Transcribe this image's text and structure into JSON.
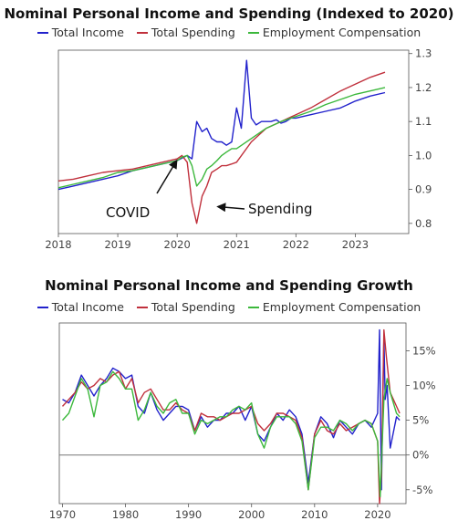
{
  "chart_data": [
    {
      "type": "line",
      "title": "Nominal Personal Income and Spending (Indexed to 2020)",
      "xlim": [
        2018.0,
        2023.9
      ],
      "ylim": [
        0.77,
        1.31
      ],
      "y_ticks": [
        "0.8",
        "0.9",
        "1.0",
        "1.1",
        "1.2",
        "1.3"
      ],
      "y_tick_values": [
        0.8,
        0.9,
        1.0,
        1.1,
        1.2,
        1.3
      ],
      "x_ticks": [
        "2018",
        "2019",
        "2020",
        "2021",
        "2022",
        "2023"
      ],
      "x_tick_values": [
        2018,
        2019,
        2020,
        2021,
        2022,
        2023
      ],
      "y_axis_side": "right",
      "grid": false,
      "legend": "top",
      "series": [
        {
          "name": "Total Income",
          "color": "#2222cc",
          "x": [
            2018.0,
            2018.25,
            2018.5,
            2018.75,
            2019.0,
            2019.25,
            2019.5,
            2019.75,
            2020.0,
            2020.17,
            2020.25,
            2020.33,
            2020.42,
            2020.5,
            2020.58,
            2020.67,
            2020.75,
            2020.83,
            2020.92,
            2021.0,
            2021.08,
            2021.17,
            2021.25,
            2021.33,
            2021.42,
            2021.5,
            2021.58,
            2021.67,
            2021.75,
            2021.83,
            2021.92,
            2022.0,
            2022.25,
            2022.5,
            2022.75,
            2023.0,
            2023.25,
            2023.5
          ],
          "y": [
            0.9,
            0.91,
            0.92,
            0.93,
            0.94,
            0.955,
            0.965,
            0.975,
            0.985,
            1.0,
            0.99,
            1.1,
            1.07,
            1.08,
            1.05,
            1.04,
            1.04,
            1.03,
            1.04,
            1.14,
            1.08,
            1.28,
            1.11,
            1.09,
            1.1,
            1.1,
            1.1,
            1.105,
            1.095,
            1.1,
            1.11,
            1.11,
            1.12,
            1.13,
            1.14,
            1.16,
            1.175,
            1.185
          ]
        },
        {
          "name": "Total Spending",
          "color": "#c0303c",
          "x": [
            2018.0,
            2018.25,
            2018.5,
            2018.75,
            2019.0,
            2019.25,
            2019.5,
            2019.75,
            2020.0,
            2020.08,
            2020.17,
            2020.25,
            2020.33,
            2020.42,
            2020.5,
            2020.58,
            2020.67,
            2020.75,
            2020.83,
            2020.92,
            2021.0,
            2021.25,
            2021.5,
            2021.75,
            2022.0,
            2022.25,
            2022.5,
            2022.75,
            2023.0,
            2023.25,
            2023.5
          ],
          "y": [
            0.925,
            0.93,
            0.94,
            0.95,
            0.955,
            0.96,
            0.97,
            0.98,
            0.99,
            1.0,
            0.98,
            0.86,
            0.8,
            0.88,
            0.91,
            0.95,
            0.96,
            0.97,
            0.97,
            0.975,
            0.98,
            1.04,
            1.08,
            1.1,
            1.12,
            1.14,
            1.165,
            1.19,
            1.21,
            1.23,
            1.245
          ]
        },
        {
          "name": "Employment Compensation",
          "color": "#3cb83c",
          "x": [
            2018.0,
            2018.25,
            2018.5,
            2018.75,
            2019.0,
            2019.25,
            2019.5,
            2019.75,
            2020.0,
            2020.08,
            2020.17,
            2020.25,
            2020.33,
            2020.42,
            2020.5,
            2020.58,
            2020.67,
            2020.75,
            2020.83,
            2020.92,
            2021.0,
            2021.25,
            2021.5,
            2021.75,
            2022.0,
            2022.25,
            2022.5,
            2022.75,
            2023.0,
            2023.25,
            2023.5
          ],
          "y": [
            0.905,
            0.915,
            0.925,
            0.935,
            0.95,
            0.955,
            0.965,
            0.975,
            0.985,
            0.995,
            1.0,
            0.97,
            0.91,
            0.93,
            0.96,
            0.97,
            0.985,
            1.0,
            1.01,
            1.02,
            1.02,
            1.05,
            1.08,
            1.1,
            1.115,
            1.13,
            1.15,
            1.165,
            1.18,
            1.19,
            1.2
          ]
        }
      ],
      "annotations": [
        {
          "text": "COVID",
          "arrow_to_x": 2020.05,
          "arrow_to_y": 1.0
        },
        {
          "text": "Spending",
          "arrow_to_x": 2020.6,
          "arrow_to_y": 0.86
        }
      ]
    },
    {
      "type": "line",
      "title": "Nominal Personal Income and Spending Growth",
      "xlim": [
        1969.5,
        2024.5
      ],
      "ylim": [
        -7.0,
        19.0
      ],
      "y_ticks": [
        "-5%",
        "0%",
        "5%",
        "10%",
        "15%"
      ],
      "y_tick_values": [
        -5,
        0,
        5,
        10,
        15
      ],
      "x_ticks": [
        "1970",
        "1980",
        "1990",
        "2000",
        "2010",
        "2020"
      ],
      "x_tick_values": [
        1970,
        1980,
        1990,
        2000,
        2010,
        2020
      ],
      "y_axis_side": "right",
      "zero_line": true,
      "grid": false,
      "legend": "top",
      "series": [
        {
          "name": "Total Income",
          "color": "#2222cc",
          "x": [
            1970,
            1971,
            1972,
            1973,
            1974,
            1975,
            1976,
            1977,
            1978,
            1979,
            1980,
            1981,
            1982,
            1983,
            1984,
            1985,
            1986,
            1987,
            1988,
            1989,
            1990,
            1991,
            1992,
            1993,
            1994,
            1995,
            1996,
            1997,
            1998,
            1999,
            2000,
            2001,
            2002,
            2003,
            2004,
            2005,
            2006,
            2007,
            2008,
            2009,
            2010,
            2011,
            2012,
            2013,
            2014,
            2015,
            2016,
            2017,
            2018,
            2019,
            2020,
            2020.3,
            2020.6,
            2021,
            2021.2,
            2021.5,
            2022,
            2023,
            2023.5
          ],
          "y": [
            8,
            7.5,
            9,
            11.5,
            10,
            8.5,
            10,
            11,
            12.5,
            12,
            11,
            11.5,
            7,
            6,
            9,
            6.5,
            5,
            6,
            7,
            7,
            6.5,
            3.5,
            5.5,
            4,
            5,
            5,
            6,
            6,
            7,
            5,
            7,
            3,
            2,
            4,
            6,
            5,
            6.5,
            5.5,
            3,
            -4,
            3,
            5.5,
            4.5,
            2.5,
            5,
            4,
            3,
            4.5,
            5,
            4,
            6,
            18,
            -5,
            17,
            8,
            10,
            1,
            5.5,
            5
          ]
        },
        {
          "name": "Total Spending",
          "color": "#c0303c",
          "x": [
            1970,
            1971,
            1972,
            1973,
            1974,
            1975,
            1976,
            1977,
            1978,
            1979,
            1980,
            1981,
            1982,
            1983,
            1984,
            1985,
            1986,
            1987,
            1988,
            1989,
            1990,
            1991,
            1992,
            1993,
            1994,
            1995,
            1996,
            1997,
            1998,
            1999,
            2000,
            2001,
            2002,
            2003,
            2004,
            2005,
            2006,
            2007,
            2008,
            2009,
            2010,
            2011,
            2012,
            2013,
            2014,
            2015,
            2016,
            2017,
            2018,
            2019,
            2020,
            2020.3,
            2020.6,
            2021,
            2021.4,
            2022,
            2022.5,
            2023,
            2023.5
          ],
          "y": [
            7,
            8,
            9,
            10.5,
            9.5,
            10,
            11,
            10.5,
            11.5,
            12,
            9.5,
            11,
            7.5,
            9,
            9.5,
            8,
            6.5,
            6.5,
            7.5,
            6.5,
            6,
            3.5,
            6,
            5.5,
            5.5,
            5,
            5.5,
            6,
            6,
            6.5,
            7,
            4.5,
            3.5,
            4.5,
            6,
            6,
            5.5,
            5,
            2.5,
            -5,
            3,
            5,
            3.5,
            3,
            4.5,
            3.5,
            4,
            4.5,
            5,
            4.5,
            2,
            -7,
            -3,
            18,
            14,
            9,
            8,
            7,
            6
          ]
        },
        {
          "name": "Employment Compensation",
          "color": "#3cb83c",
          "x": [
            1970,
            1971,
            1972,
            1973,
            1974,
            1975,
            1976,
            1977,
            1978,
            1979,
            1980,
            1981,
            1982,
            1983,
            1984,
            1985,
            1986,
            1987,
            1988,
            1989,
            1990,
            1991,
            1992,
            1993,
            1994,
            1995,
            1996,
            1997,
            1998,
            1999,
            2000,
            2001,
            2002,
            2003,
            2004,
            2005,
            2006,
            2007,
            2008,
            2009,
            2010,
            2011,
            2012,
            2013,
            2014,
            2015,
            2016,
            2017,
            2018,
            2019,
            2020,
            2020.4,
            2021,
            2021.5,
            2022,
            2023,
            2023.5
          ],
          "y": [
            5,
            6,
            8.5,
            11,
            9.5,
            5.5,
            10,
            10.5,
            12,
            11,
            9.5,
            9.5,
            5,
            6.5,
            9,
            7,
            6,
            7.5,
            8,
            6,
            6,
            3,
            5,
            4.5,
            5,
            5.5,
            5.5,
            6.5,
            7,
            6.5,
            7.5,
            3,
            1,
            4,
            5.5,
            5.5,
            5.5,
            4.5,
            2,
            -5,
            2.5,
            4,
            4,
            3.5,
            5,
            4.5,
            3.5,
            4.5,
            5,
            4.5,
            2,
            -6,
            8,
            11,
            9,
            6,
            5.5
          ]
        }
      ]
    }
  ]
}
